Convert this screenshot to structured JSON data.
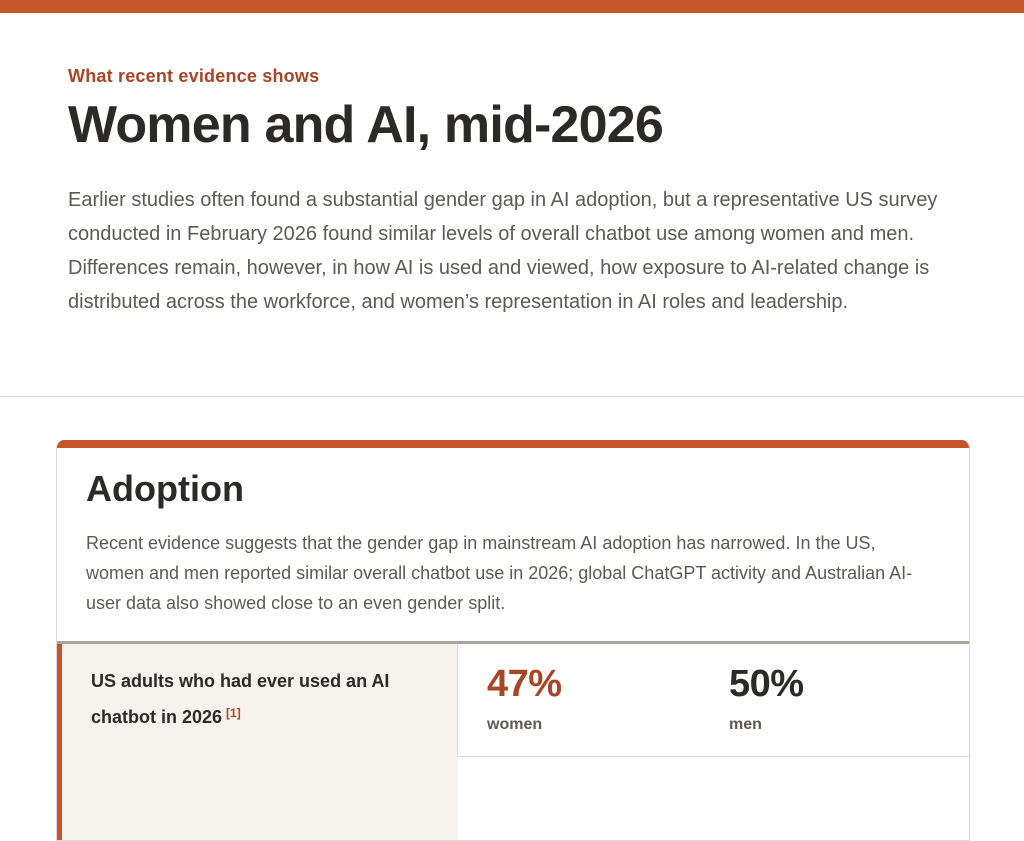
{
  "header": {
    "eyebrow": "What recent evidence shows",
    "title": "Women and AI, mid-2026",
    "intro": "Earlier studies often found a substantial gender gap in AI adoption, but a representative US survey conducted in February 2026 found similar levels of overall chatbot use among women and men. Differences remain, however, in how AI is used and viewed, how exposure to AI-related change is distributed across the workforce, and women’s representation in AI roles and leadership."
  },
  "adoption": {
    "title": "Adoption",
    "description": "Recent evidence suggests that the gender gap in mainstream AI adoption has narrowed. In the US, women and men reported similar overall chatbot use in 2026; global ChatGPT activity and Australian AI-user data also showed close to an even gender split.",
    "rows": [
      {
        "label": "US adults who had ever used an AI chatbot in 2026",
        "ref": "[1]",
        "women_value": "47%",
        "women_label": "women",
        "men_value": "50%",
        "men_label": "men"
      }
    ]
  },
  "colors": {
    "accent": "#c4562b",
    "accent_text": "#a94524",
    "row_background": "#f6f3ee"
  }
}
